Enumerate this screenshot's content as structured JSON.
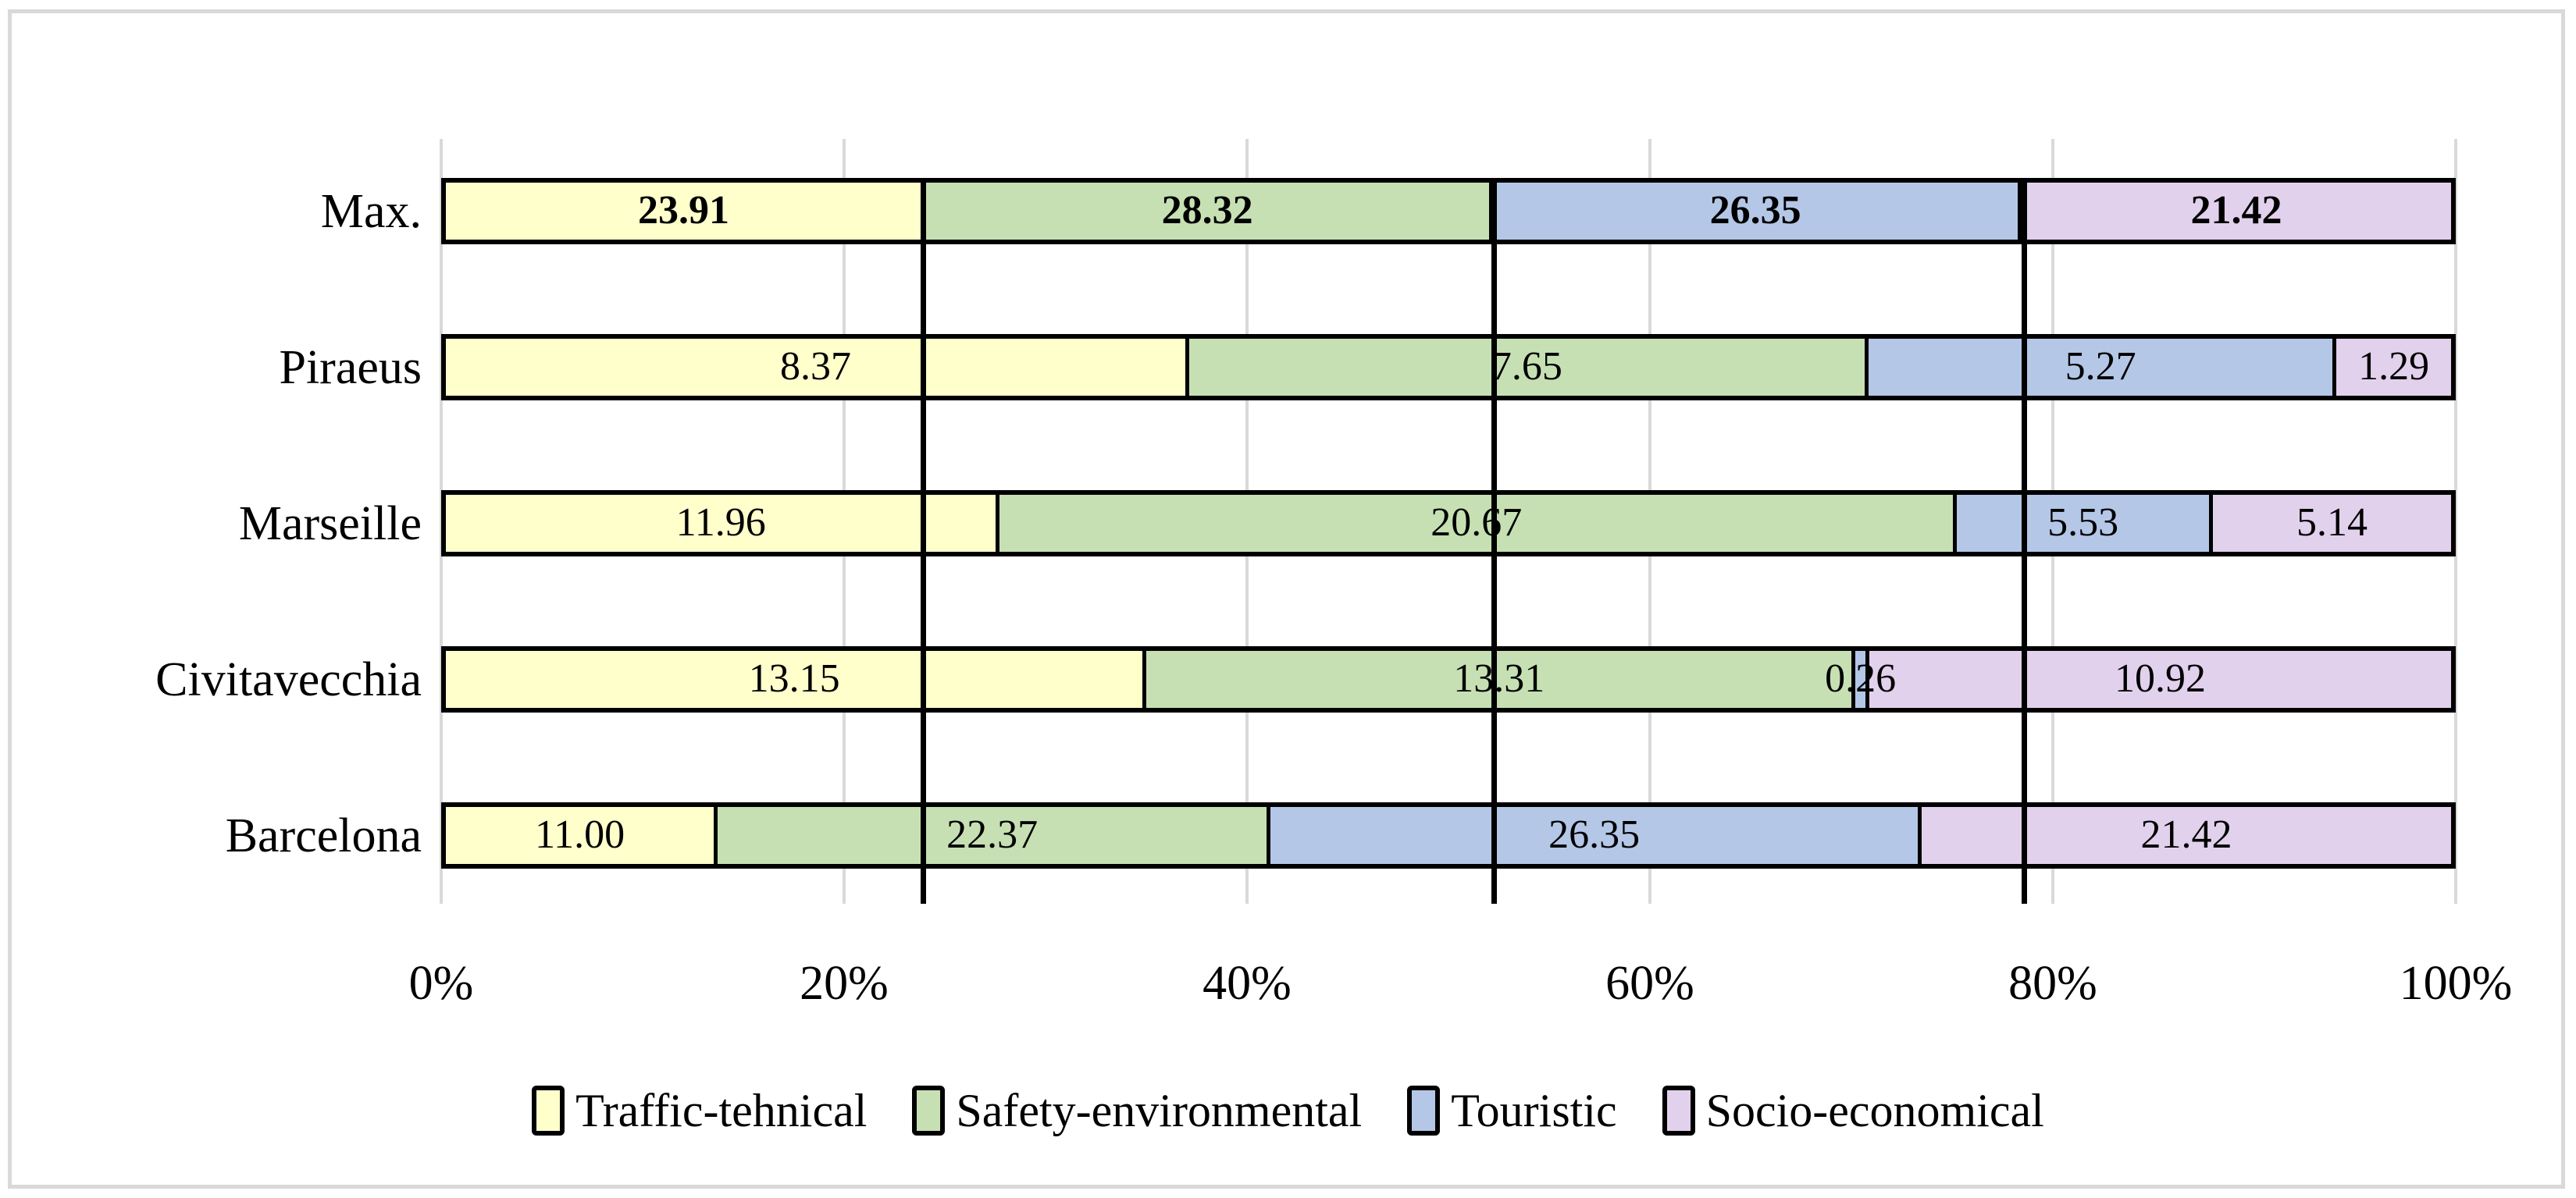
{
  "figure": {
    "kind": "stacked-bar-figure",
    "background": "#ffffff",
    "border_color": "#d9d9d9"
  },
  "colors": {
    "gridline": "#d9d9d9",
    "bar_border": "#000000",
    "threshold_line": "#000000",
    "text": "#000000"
  },
  "chart_data": {
    "type": "bar",
    "orientation": "horizontal",
    "stacking": "100%",
    "title": "",
    "xlabel": "",
    "ylabel": "",
    "xlim": [
      0,
      100
    ],
    "grid": true,
    "legend_position": "bottom",
    "categories": [
      "Max.",
      "Piraeus",
      "Marseille",
      "Civitavecchia",
      "Barcelona"
    ],
    "bold_value_labels_for_category": "Max.",
    "series": [
      {
        "name": "Traffic-tehnical",
        "color": "#FFFFCC",
        "values": [
          23.91,
          8.37,
          11.96,
          13.15,
          11.0
        ],
        "labels": [
          "23.91",
          "8.37",
          "11.96",
          "13.15",
          "11.00"
        ]
      },
      {
        "name": "Safety-environmental",
        "color": "#C6E0B4",
        "values": [
          28.32,
          7.65,
          20.67,
          13.31,
          22.37
        ],
        "labels": [
          "28.32",
          "7.65",
          "20.67",
          "13.31",
          "22.37"
        ]
      },
      {
        "name": "Touristic",
        "color": "#B4C7E7",
        "values": [
          26.35,
          5.27,
          5.53,
          0.26,
          26.35
        ],
        "labels": [
          "26.35",
          "5.27",
          "5.53",
          "0.26",
          "26.35"
        ]
      },
      {
        "name": "Socio-economical",
        "color": "#E2D1EC",
        "values": [
          21.42,
          1.29,
          5.14,
          10.92,
          21.42
        ],
        "labels": [
          "21.42",
          "1.29",
          "5.14",
          "10.92",
          "21.42"
        ]
      }
    ],
    "x_ticks": [
      "0%",
      "20%",
      "40%",
      "60%",
      "80%",
      "100%"
    ],
    "x_tick_values": [
      0,
      20,
      40,
      60,
      80,
      100
    ],
    "threshold_lines_pct": [
      23.91,
      52.23,
      78.58
    ]
  }
}
